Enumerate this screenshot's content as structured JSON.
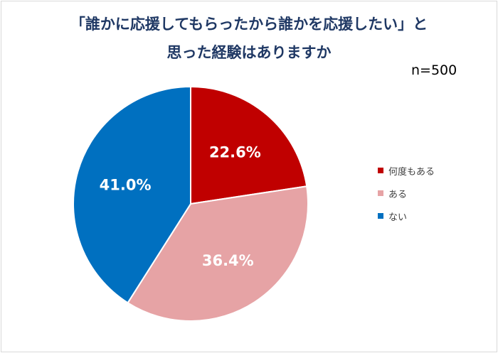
{
  "chart_data": {
    "type": "pie",
    "title_lines": [
      "「誰かに応援してもらったから誰かを応援したい」と",
      "思った経験はありますか"
    ],
    "sample_note": "n=500",
    "categories": [
      "何度もある",
      "ある",
      "ない"
    ],
    "values": [
      22.6,
      36.4,
      41.0
    ],
    "value_labels": [
      "22.6%",
      "36.4%",
      "41.0%"
    ],
    "colors": [
      "#c00000",
      "#e6a3a5",
      "#0070c0"
    ],
    "start_angle_deg": 0,
    "direction": "clockwise",
    "legend_position": "right"
  }
}
